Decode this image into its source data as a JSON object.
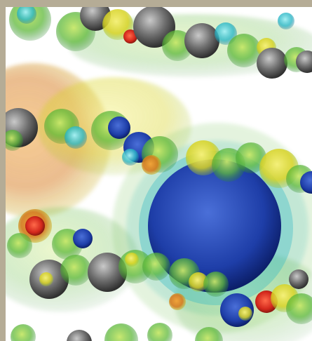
{
  "scene": {
    "frame_color": "#b5ac96",
    "background_color": "#ffffff",
    "subject": "volume-rendered-isosurfaces",
    "palette": {
      "gray": "#6f6f6f",
      "green": "#5fb93a",
      "yellow": "#d8d324",
      "orange": "#d67a1e",
      "red": "#d3281c",
      "blue": "#1e3ea8",
      "cyan": "#2ab7c7"
    }
  }
}
